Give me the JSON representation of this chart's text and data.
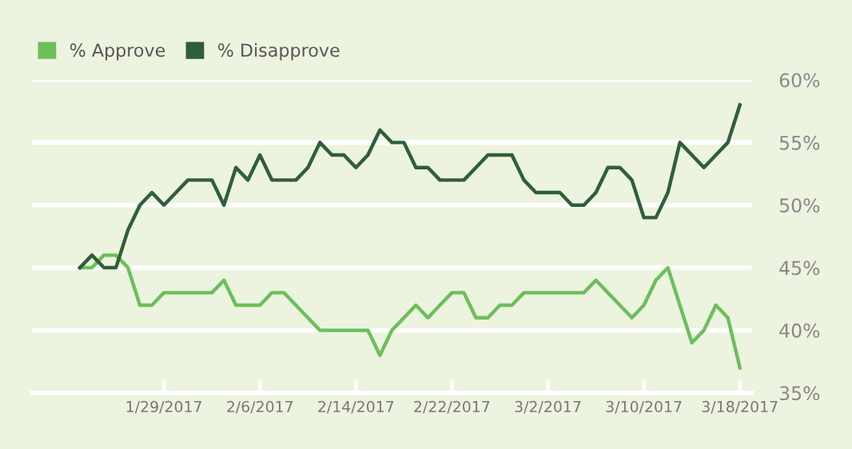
{
  "chart_data": {
    "type": "line",
    "x": [
      "2017-01-22",
      "2017-01-23",
      "2017-01-24",
      "2017-01-25",
      "2017-01-26",
      "2017-01-27",
      "2017-01-28",
      "2017-01-29",
      "2017-01-30",
      "2017-01-31",
      "2017-02-01",
      "2017-02-02",
      "2017-02-03",
      "2017-02-04",
      "2017-02-05",
      "2017-02-06",
      "2017-02-07",
      "2017-02-08",
      "2017-02-09",
      "2017-02-10",
      "2017-02-11",
      "2017-02-12",
      "2017-02-13",
      "2017-02-14",
      "2017-02-15",
      "2017-02-16",
      "2017-02-17",
      "2017-02-18",
      "2017-02-19",
      "2017-02-20",
      "2017-02-21",
      "2017-02-22",
      "2017-02-23",
      "2017-02-24",
      "2017-02-25",
      "2017-02-26",
      "2017-02-27",
      "2017-02-28",
      "2017-03-01",
      "2017-03-02",
      "2017-03-03",
      "2017-03-04",
      "2017-03-05",
      "2017-03-06",
      "2017-03-07",
      "2017-03-08",
      "2017-03-09",
      "2017-03-10",
      "2017-03-11",
      "2017-03-12",
      "2017-03-13",
      "2017-03-14",
      "2017-03-15",
      "2017-03-16",
      "2017-03-17",
      "2017-03-18"
    ],
    "series": [
      {
        "name": "% Approve",
        "color": "#6cbf5b",
        "values": [
          45,
          45,
          46,
          46,
          45,
          42,
          42,
          43,
          43,
          43,
          43,
          43,
          44,
          42,
          42,
          42,
          43,
          43,
          42,
          41,
          40,
          40,
          40,
          40,
          40,
          38,
          40,
          41,
          42,
          41,
          42,
          43,
          43,
          41,
          41,
          42,
          42,
          43,
          43,
          43,
          43,
          43,
          43,
          44,
          43,
          42,
          41,
          42,
          44,
          45,
          42,
          39,
          40,
          42,
          41,
          37
        ]
      },
      {
        "name": "% Disapprove",
        "color": "#2f5f38",
        "values": [
          45,
          46,
          45,
          45,
          48,
          50,
          51,
          50,
          51,
          52,
          52,
          52,
          50,
          53,
          52,
          54,
          52,
          52,
          52,
          53,
          55,
          54,
          54,
          53,
          54,
          56,
          55,
          55,
          53,
          53,
          52,
          52,
          52,
          53,
          54,
          54,
          54,
          52,
          51,
          51,
          51,
          50,
          50,
          51,
          53,
          53,
          52,
          49,
          49,
          51,
          55,
          54,
          53,
          54,
          55,
          58
        ]
      }
    ],
    "xlim": [
      "2017-01-18",
      "2017-03-19"
    ],
    "xticks": [
      {
        "value": "2017-01-29",
        "label": "1/29/2017"
      },
      {
        "value": "2017-02-06",
        "label": "2/6/2017"
      },
      {
        "value": "2017-02-14",
        "label": "2/14/2017"
      },
      {
        "value": "2017-02-22",
        "label": "2/22/2017"
      },
      {
        "value": "2017-03-02",
        "label": "3/2/2017"
      },
      {
        "value": "2017-03-10",
        "label": "3/10/2017"
      },
      {
        "value": "2017-03-18",
        "label": "3/18/2017"
      }
    ],
    "ylim": [
      35,
      60
    ],
    "yticks": [
      {
        "value": 35,
        "label": "35%"
      },
      {
        "value": 40,
        "label": "40%"
      },
      {
        "value": 45,
        "label": "45%"
      },
      {
        "value": 50,
        "label": "50%"
      },
      {
        "value": 55,
        "label": "55%"
      },
      {
        "value": 60,
        "label": "60%"
      }
    ],
    "grid": "y",
    "legend": "top left"
  }
}
